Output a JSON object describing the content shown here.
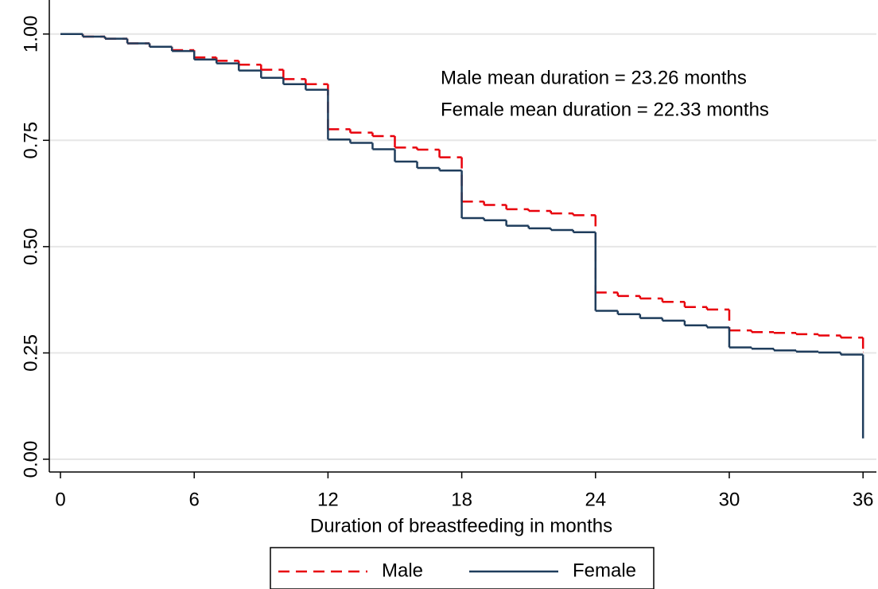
{
  "chart_data": {
    "type": "step",
    "annotations": [
      "Male mean duration = 23.26 months",
      "Female mean duration = 22.33 months"
    ],
    "x_label": "Duration of breastfeeding in months",
    "x": [
      0,
      1,
      2,
      3,
      4,
      5,
      6,
      7,
      8,
      9,
      10,
      11,
      12,
      13,
      14,
      15,
      16,
      17,
      18,
      19,
      20,
      21,
      22,
      23,
      24,
      25,
      26,
      27,
      28,
      29,
      30,
      31,
      32,
      33,
      34,
      35,
      36
    ],
    "series": [
      {
        "name": "Male",
        "color": "#e8000b",
        "dash": true,
        "values": [
          1.0,
          0.994,
          0.989,
          0.978,
          0.97,
          0.962,
          0.945,
          0.937,
          0.928,
          0.916,
          0.894,
          0.882,
          0.776,
          0.768,
          0.76,
          0.733,
          0.728,
          0.71,
          0.606,
          0.598,
          0.588,
          0.584,
          0.578,
          0.574,
          0.392,
          0.384,
          0.378,
          0.37,
          0.358,
          0.352,
          0.303,
          0.299,
          0.297,
          0.294,
          0.291,
          0.286,
          0.252
        ]
      },
      {
        "name": "Female",
        "color": "#1f3d5c",
        "dash": false,
        "values": [
          1.0,
          0.994,
          0.989,
          0.978,
          0.97,
          0.96,
          0.94,
          0.931,
          0.914,
          0.897,
          0.882,
          0.869,
          0.752,
          0.744,
          0.729,
          0.7,
          0.685,
          0.679,
          0.567,
          0.562,
          0.549,
          0.543,
          0.539,
          0.534,
          0.349,
          0.341,
          0.332,
          0.326,
          0.315,
          0.31,
          0.263,
          0.26,
          0.256,
          0.253,
          0.251,
          0.246,
          0.049
        ]
      }
    ],
    "xlim": [
      -0.5,
      36.6
    ],
    "xticks": [
      0,
      6,
      12,
      18,
      24,
      30,
      36
    ],
    "ylim": [
      -0.03,
      1.08
    ],
    "yticks": [
      {
        "value": 0,
        "label": "0.00"
      },
      {
        "value": 0.25,
        "label": "0.25"
      },
      {
        "value": 0.5,
        "label": "0.50"
      },
      {
        "value": 0.75,
        "label": "0.75"
      },
      {
        "value": 1,
        "label": "1.00"
      }
    ],
    "grid": true
  }
}
